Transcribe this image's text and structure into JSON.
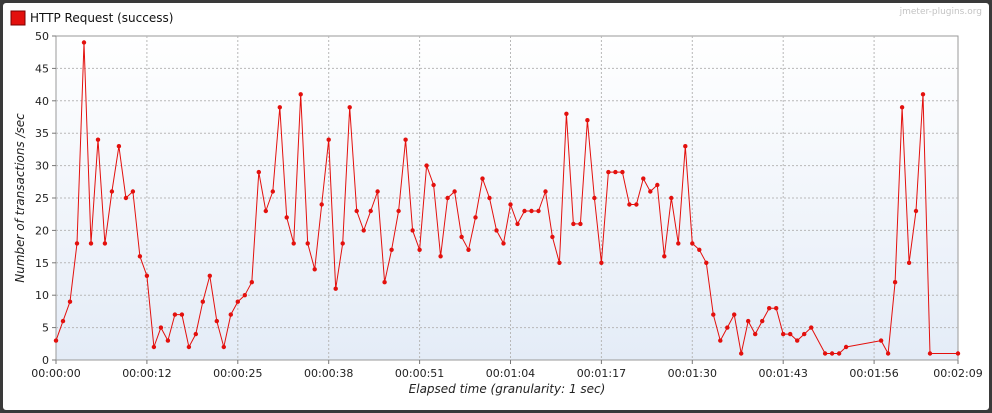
{
  "watermark": "jmeter-plugins.org",
  "chart_data": {
    "type": "line",
    "title": "",
    "xlabel": "Elapsed time (granularity: 1 sec)",
    "ylabel": "Number of transactions /sec",
    "ylim": [
      0,
      50
    ],
    "yticks": [
      0,
      5,
      10,
      15,
      20,
      25,
      30,
      35,
      40,
      45,
      50
    ],
    "xlim": [
      0,
      129
    ],
    "xticks": [
      {
        "value": 0,
        "label": "00:00:00"
      },
      {
        "value": 13,
        "label": "00:00:12"
      },
      {
        "value": 26,
        "label": "00:00:25"
      },
      {
        "value": 39,
        "label": "00:00:38"
      },
      {
        "value": 52,
        "label": "00:00:51"
      },
      {
        "value": 65,
        "label": "00:01:04"
      },
      {
        "value": 78,
        "label": "00:01:17"
      },
      {
        "value": 91,
        "label": "00:01:30"
      },
      {
        "value": 104,
        "label": "00:01:43"
      },
      {
        "value": 117,
        "label": "00:01:56"
      },
      {
        "value": 129,
        "label": "00:02:09"
      }
    ],
    "grid": true,
    "legend_position": "top-left",
    "colors": {
      "series": "#e3100d",
      "plot_bg": "#e7eef8",
      "grid": "#b8b8b8"
    },
    "series": [
      {
        "name": "HTTP Request (success)",
        "points": [
          [
            0,
            3
          ],
          [
            1,
            6
          ],
          [
            2,
            9
          ],
          [
            3,
            18
          ],
          [
            4,
            49
          ],
          [
            5,
            18
          ],
          [
            6,
            34
          ],
          [
            7,
            18
          ],
          [
            8,
            26
          ],
          [
            9,
            33
          ],
          [
            10,
            25
          ],
          [
            11,
            26
          ],
          [
            12,
            16
          ],
          [
            13,
            13
          ],
          [
            14,
            2
          ],
          [
            15,
            5
          ],
          [
            16,
            3
          ],
          [
            17,
            7
          ],
          [
            18,
            7
          ],
          [
            19,
            2
          ],
          [
            20,
            4
          ],
          [
            21,
            9
          ],
          [
            22,
            13
          ],
          [
            23,
            6
          ],
          [
            24,
            2
          ],
          [
            25,
            7
          ],
          [
            26,
            9
          ],
          [
            27,
            10
          ],
          [
            28,
            12
          ],
          [
            29,
            29
          ],
          [
            30,
            23
          ],
          [
            31,
            26
          ],
          [
            32,
            39
          ],
          [
            33,
            22
          ],
          [
            34,
            18
          ],
          [
            35,
            41
          ],
          [
            36,
            18
          ],
          [
            37,
            14
          ],
          [
            38,
            24
          ],
          [
            39,
            34
          ],
          [
            40,
            11
          ],
          [
            41,
            18
          ],
          [
            42,
            39
          ],
          [
            43,
            23
          ],
          [
            44,
            20
          ],
          [
            45,
            23
          ],
          [
            46,
            26
          ],
          [
            47,
            12
          ],
          [
            48,
            17
          ],
          [
            49,
            23
          ],
          [
            50,
            34
          ],
          [
            51,
            20
          ],
          [
            52,
            17
          ],
          [
            53,
            30
          ],
          [
            54,
            27
          ],
          [
            55,
            16
          ],
          [
            56,
            25
          ],
          [
            57,
            26
          ],
          [
            58,
            19
          ],
          [
            59,
            17
          ],
          [
            60,
            22
          ],
          [
            61,
            28
          ],
          [
            62,
            25
          ],
          [
            63,
            20
          ],
          [
            64,
            18
          ],
          [
            65,
            24
          ],
          [
            66,
            21
          ],
          [
            67,
            23
          ],
          [
            68,
            23
          ],
          [
            69,
            23
          ],
          [
            70,
            26
          ],
          [
            71,
            19
          ],
          [
            72,
            15
          ],
          [
            73,
            38
          ],
          [
            74,
            21
          ],
          [
            75,
            21
          ],
          [
            76,
            37
          ],
          [
            77,
            25
          ],
          [
            78,
            15
          ],
          [
            79,
            29
          ],
          [
            80,
            29
          ],
          [
            81,
            29
          ],
          [
            82,
            24
          ],
          [
            83,
            24
          ],
          [
            84,
            28
          ],
          [
            85,
            26
          ],
          [
            86,
            27
          ],
          [
            87,
            16
          ],
          [
            88,
            25
          ],
          [
            89,
            18
          ],
          [
            90,
            33
          ],
          [
            91,
            18
          ],
          [
            92,
            17
          ],
          [
            93,
            15
          ],
          [
            94,
            7
          ],
          [
            95,
            3
          ],
          [
            96,
            5
          ],
          [
            97,
            7
          ],
          [
            98,
            1
          ],
          [
            99,
            6
          ],
          [
            100,
            4
          ],
          [
            101,
            6
          ],
          [
            102,
            8
          ],
          [
            103,
            8
          ],
          [
            104,
            4
          ],
          [
            105,
            4
          ],
          [
            106,
            3
          ],
          [
            107,
            4
          ],
          [
            108,
            5
          ],
          [
            110,
            1
          ],
          [
            111,
            1
          ],
          [
            112,
            1
          ],
          [
            113,
            2
          ],
          [
            118,
            3
          ],
          [
            119,
            1
          ],
          [
            120,
            12
          ],
          [
            121,
            39
          ],
          [
            122,
            15
          ],
          [
            123,
            23
          ],
          [
            124,
            41
          ],
          [
            125,
            1
          ],
          [
            129,
            1
          ]
        ]
      }
    ]
  }
}
